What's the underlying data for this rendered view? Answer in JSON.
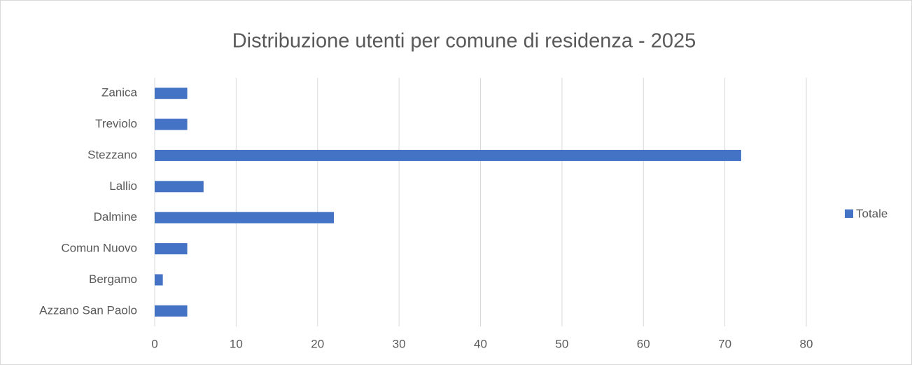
{
  "chart_data": {
    "type": "bar",
    "orientation": "horizontal",
    "title": "Distribuzione utenti per comune di residenza - 2025",
    "categories": [
      "Azzano San Paolo",
      "Bergamo",
      "Comun Nuovo",
      "Dalmine",
      "Lallio",
      "Stezzano",
      "Treviolo",
      "Zanica"
    ],
    "series": [
      {
        "name": "Totale",
        "color": "#4472c4",
        "values": [
          4,
          1,
          4,
          22,
          6,
          72,
          4,
          4
        ]
      }
    ],
    "xlim": [
      0,
      80
    ],
    "xticks": [
      0,
      10,
      20,
      30,
      40,
      50,
      60,
      70,
      80
    ],
    "grid": true,
    "legend": "right"
  }
}
